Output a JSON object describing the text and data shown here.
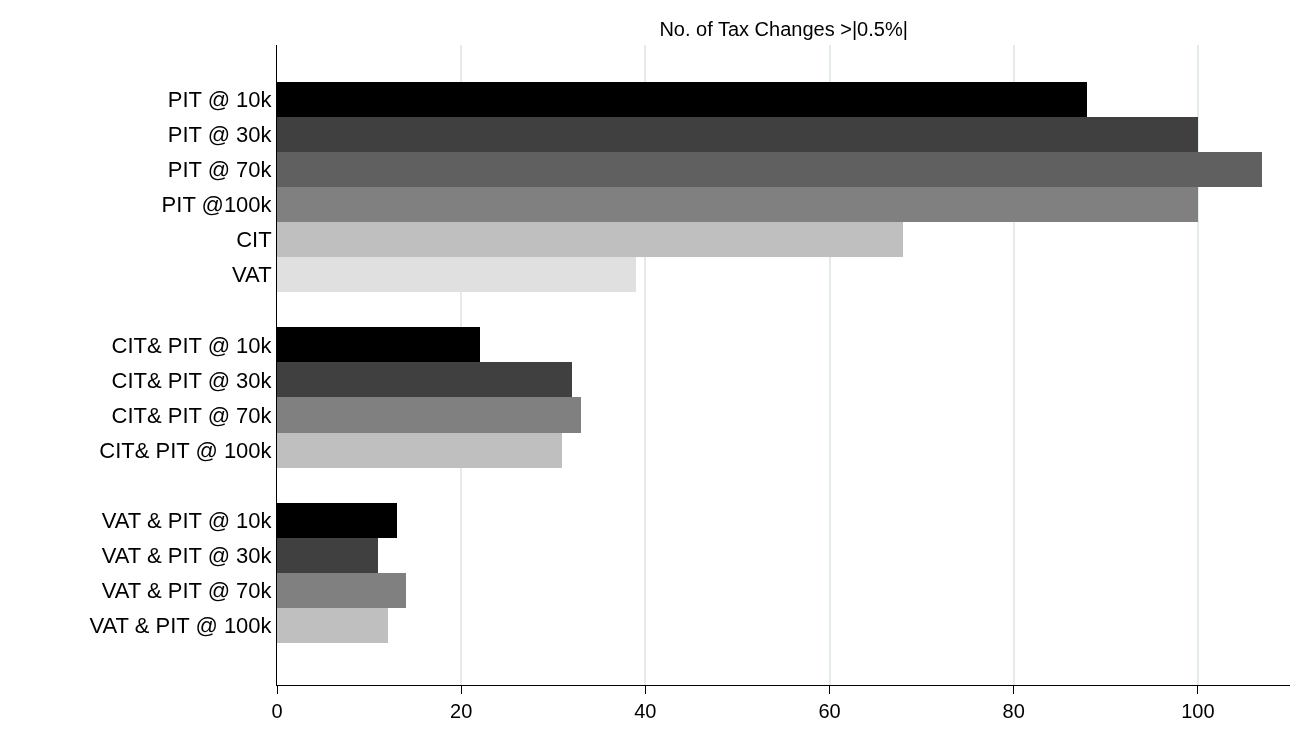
{
  "chart_data": {
    "type": "bar",
    "orientation": "horizontal",
    "title": "No. of Tax Changes >|0.5%|",
    "categories": [
      "PIT @ 10k",
      "PIT @ 30k",
      "PIT @ 70k",
      "PIT @100k",
      "CIT",
      "VAT",
      null,
      "CIT& PIT @ 10k",
      "CIT& PIT @ 30k",
      "CIT& PIT @ 70k",
      "CIT& PIT @ 100k",
      null,
      "VAT & PIT @ 10k",
      "VAT & PIT @ 30k",
      "VAT & PIT @ 70k",
      "VAT & PIT @ 100k"
    ],
    "values": [
      88,
      100,
      107,
      100,
      68,
      39,
      null,
      22,
      32,
      33,
      31,
      null,
      13,
      11,
      14,
      12
    ],
    "colors": [
      "#000000",
      "#404040",
      "#606060",
      "#808080",
      "#bfbfbf",
      "#e0e0e0",
      "#ffffff",
      "#000000",
      "#404040",
      "#808080",
      "#bfbfbf",
      "#ffffff",
      "#000000",
      "#404040",
      "#808080",
      "#bfbfbf"
    ],
    "xlim": [
      0,
      110
    ],
    "xticks": [
      0,
      20,
      40,
      60,
      80,
      100
    ],
    "grid": "x"
  }
}
